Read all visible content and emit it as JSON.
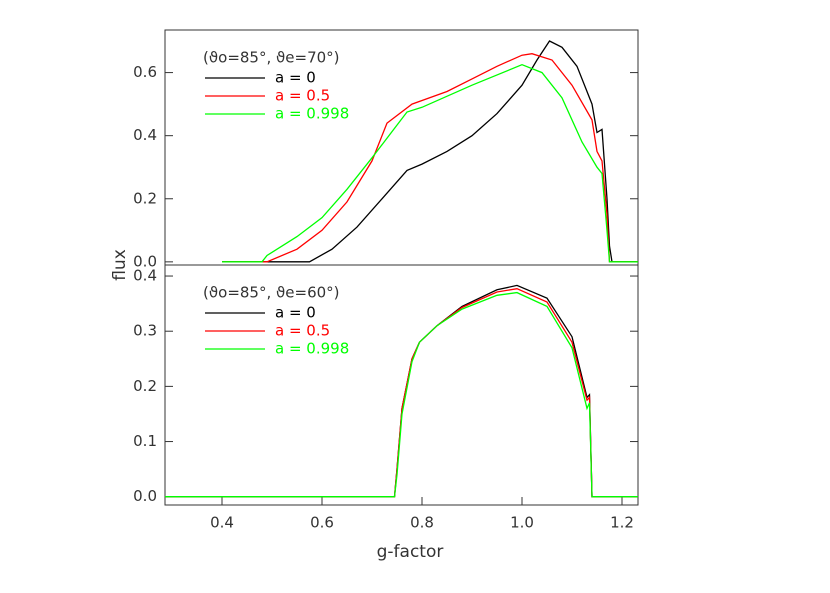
{
  "chart_data": [
    {
      "type": "line",
      "ylabel": "flux",
      "legend_title": "(ϑo=85°, ϑe=70°)",
      "xlim": [
        0.286,
        1.232
      ],
      "ylim": [
        -0.01,
        0.735
      ],
      "yticks": [
        {
          "value": 0,
          "label": "0.0"
        },
        0.2,
        0.4,
        0.6
      ],
      "series": [
        {
          "name": "a = 0",
          "color": "#000000",
          "x": [
            0.4,
            0.575,
            0.62,
            0.67,
            0.72,
            0.77,
            0.8,
            0.85,
            0.9,
            0.95,
            1.0,
            1.03,
            1.055,
            1.08,
            1.11,
            1.14,
            1.15,
            1.16,
            1.17,
            1.175,
            1.18,
            1.232
          ],
          "values": [
            0,
            0,
            0.04,
            0.11,
            0.2,
            0.29,
            0.31,
            0.35,
            0.4,
            0.47,
            0.56,
            0.64,
            0.7,
            0.68,
            0.62,
            0.5,
            0.41,
            0.42,
            0.2,
            0.05,
            0,
            0
          ]
        },
        {
          "name": "a = 0.5",
          "color": "#ff0000",
          "x": [
            0.4,
            0.49,
            0.55,
            0.6,
            0.65,
            0.7,
            0.73,
            0.78,
            0.85,
            0.9,
            0.95,
            1.0,
            1.02,
            1.06,
            1.1,
            1.14,
            1.15,
            1.16,
            1.17,
            1.175,
            1.232
          ],
          "values": [
            0,
            0,
            0.04,
            0.1,
            0.19,
            0.32,
            0.44,
            0.5,
            0.54,
            0.58,
            0.62,
            0.655,
            0.66,
            0.64,
            0.56,
            0.45,
            0.35,
            0.32,
            0.15,
            0,
            0
          ]
        },
        {
          "name": "a = 0.998",
          "color": "#00ff00",
          "x": [
            0.4,
            0.48,
            0.49,
            0.55,
            0.6,
            0.65,
            0.7,
            0.77,
            0.8,
            0.9,
            1.0,
            1.04,
            1.08,
            1.12,
            1.15,
            1.16,
            1.17,
            1.175,
            1.232
          ],
          "values": [
            0,
            0,
            0.02,
            0.08,
            0.14,
            0.23,
            0.33,
            0.475,
            0.49,
            0.56,
            0.625,
            0.6,
            0.52,
            0.38,
            0.3,
            0.28,
            0.1,
            0,
            0
          ]
        }
      ]
    },
    {
      "type": "line",
      "xlabel": "g-factor",
      "legend_title": "(ϑo=85°, ϑe=60°)",
      "xlim": [
        0.286,
        1.232
      ],
      "ylim": [
        -0.015,
        0.42
      ],
      "xticks": [
        0.4,
        0.6,
        0.8,
        {
          "value": 1,
          "label": "1.0"
        },
        1.2
      ],
      "yticks": [
        {
          "value": 0,
          "label": "0.0"
        },
        0.1,
        0.2,
        0.3,
        0.4
      ],
      "series": [
        {
          "name": "a = 0",
          "color": "#000000",
          "x": [
            0.286,
            0.745,
            0.75,
            0.76,
            0.78,
            0.795,
            0.83,
            0.88,
            0.95,
            0.99,
            1.05,
            1.1,
            1.13,
            1.135,
            1.14,
            1.232
          ],
          "values": [
            0,
            0,
            0.05,
            0.16,
            0.25,
            0.28,
            0.31,
            0.345,
            0.375,
            0.383,
            0.36,
            0.29,
            0.18,
            0.185,
            0,
            0
          ]
        },
        {
          "name": "a = 0.5",
          "color": "#ff0000",
          "x": [
            0.286,
            0.745,
            0.75,
            0.76,
            0.78,
            0.795,
            0.83,
            0.88,
            0.95,
            0.99,
            1.05,
            1.1,
            1.13,
            1.135,
            1.14,
            1.232
          ],
          "values": [
            0,
            0,
            0.05,
            0.16,
            0.25,
            0.28,
            0.31,
            0.343,
            0.371,
            0.377,
            0.353,
            0.28,
            0.175,
            0.18,
            0,
            0
          ]
        },
        {
          "name": "a = 0.998",
          "color": "#00ff00",
          "x": [
            0.286,
            0.745,
            0.75,
            0.76,
            0.78,
            0.795,
            0.83,
            0.88,
            0.95,
            0.99,
            1.05,
            1.1,
            1.13,
            1.135,
            1.14,
            1.232
          ],
          "values": [
            0,
            0,
            0.04,
            0.15,
            0.245,
            0.28,
            0.31,
            0.34,
            0.365,
            0.37,
            0.345,
            0.27,
            0.16,
            0.17,
            0,
            0
          ]
        }
      ]
    }
  ]
}
